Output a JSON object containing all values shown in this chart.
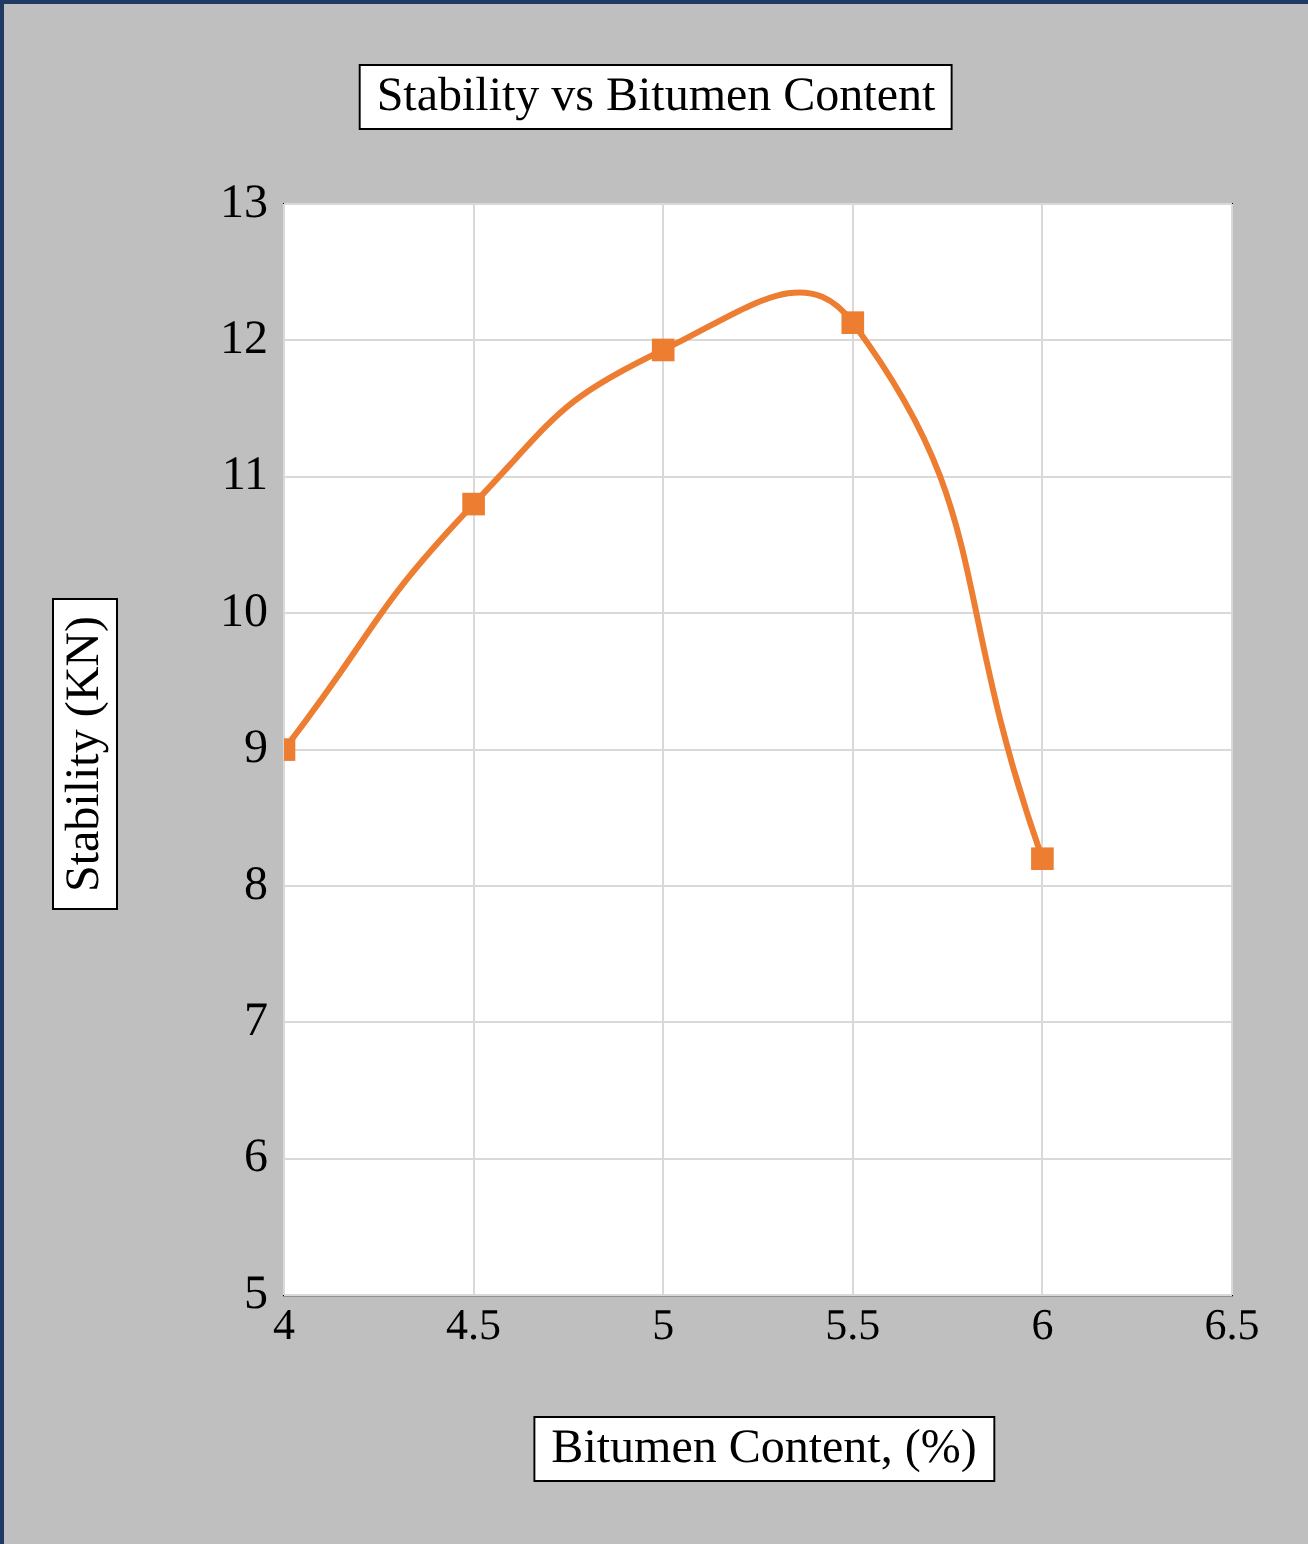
{
  "chart_data": {
    "type": "line",
    "title": "Stability vs Bitumen Content",
    "xlabel": "Bitumen Content, (%)",
    "ylabel": "Stability (KN)",
    "x": [
      4,
      4.5,
      5,
      5.5,
      6
    ],
    "series": [
      {
        "color": "#ed7d31",
        "values": [
          9,
          10.8,
          11.93,
          12.13,
          8.2
        ]
      }
    ],
    "xlim": [
      4,
      6.5
    ],
    "xticks": [
      4,
      4.5,
      5,
      5.5,
      6,
      6.5
    ],
    "ylim": [
      5,
      13
    ],
    "yticks": [
      5,
      6,
      7,
      8,
      9,
      10,
      11,
      12,
      13
    ],
    "grid": true,
    "legend": false,
    "marker": "square",
    "line_style": "solid"
  }
}
